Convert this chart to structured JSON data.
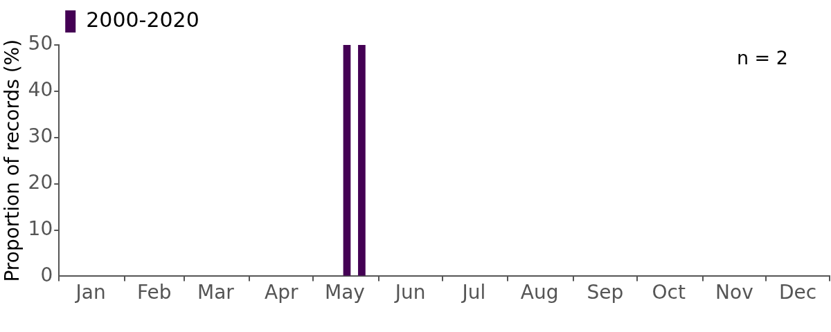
{
  "chart_data": {
    "type": "bar",
    "x": [
      "--05-17",
      "--05-24"
    ],
    "series": [
      {
        "name": "2000-2020",
        "color": "#440154",
        "values": [
          50,
          50
        ]
      }
    ],
    "ylabel": "Proportion of records (%)",
    "ylim": [
      0,
      50
    ],
    "yticks": [
      0,
      10,
      20,
      30,
      40,
      50
    ],
    "xlim": [
      "--01-01",
      "--12-31"
    ],
    "xticks": [
      {
        "value": "--01-01",
        "label": null
      },
      {
        "value": "--01-16",
        "label": "Jan"
      },
      {
        "value": "--02-01",
        "label": null
      },
      {
        "value": "--02-15",
        "label": "Feb"
      },
      {
        "value": "--03-01",
        "label": null
      },
      {
        "value": "--03-16",
        "label": "Mar"
      },
      {
        "value": "--04-01",
        "label": null
      },
      {
        "value": "--04-16",
        "label": "Apr"
      },
      {
        "value": "--05-01",
        "label": null
      },
      {
        "value": "--05-16",
        "label": "May"
      },
      {
        "value": "--06-01",
        "label": null
      },
      {
        "value": "--06-16",
        "label": "Jun"
      },
      {
        "value": "--07-01",
        "label": null
      },
      {
        "value": "--07-16",
        "label": "Jul"
      },
      {
        "value": "--08-01",
        "label": null
      },
      {
        "value": "--08-16",
        "label": "Aug"
      },
      {
        "value": "--09-01",
        "label": null
      },
      {
        "value": "--09-16",
        "label": "Sep"
      },
      {
        "value": "--10-01",
        "label": null
      },
      {
        "value": "--10-16",
        "label": "Oct"
      },
      {
        "value": "--11-01",
        "label": null
      },
      {
        "value": "--11-16",
        "label": "Nov"
      },
      {
        "value": "--12-01",
        "label": null
      },
      {
        "value": "--12-16",
        "label": "Dec"
      },
      {
        "value": "--12-31",
        "label": null
      }
    ],
    "legend": "top left",
    "grid": false,
    "annotations": [
      "n = 2"
    ]
  }
}
